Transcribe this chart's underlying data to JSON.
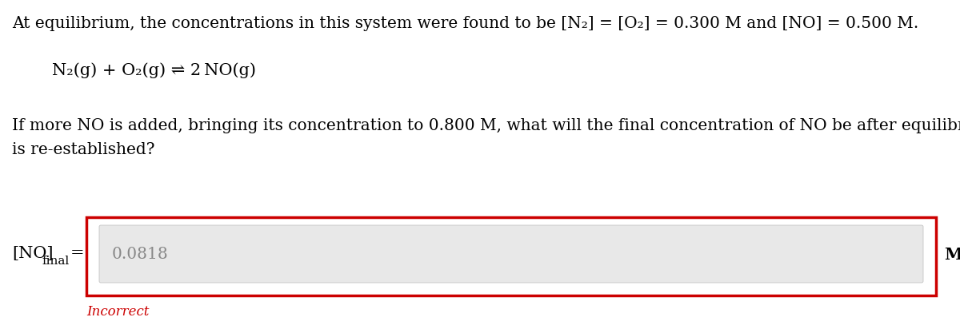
{
  "background_color": "#ffffff",
  "top_text": "At equilibrium, the concentrations in this system were found to be [N₂] = [O₂] = 0.300 M and [NO] = 0.500 M.",
  "equation": "N₂(g) + O₂(g) ⇌ 2 NO(g)",
  "question_text_line1": "If more NO is added, bringing its concentration to 0.800 M, what will the final concentration of NO be after equilibrium",
  "question_text_line2": "is re-established?",
  "label_left_main": "[NO]",
  "label_left_sub": "final",
  "label_right": "M",
  "input_value": "0.0818",
  "feedback": "Incorrect",
  "feedback_color": "#cc0000",
  "outer_box_color": "#cc0000",
  "inner_box_color": "#e8e8e8",
  "input_text_color": "#888888",
  "main_font_size": 14.5,
  "eq_font_size": 15,
  "label_font_size": 15,
  "feedback_font_size": 12
}
